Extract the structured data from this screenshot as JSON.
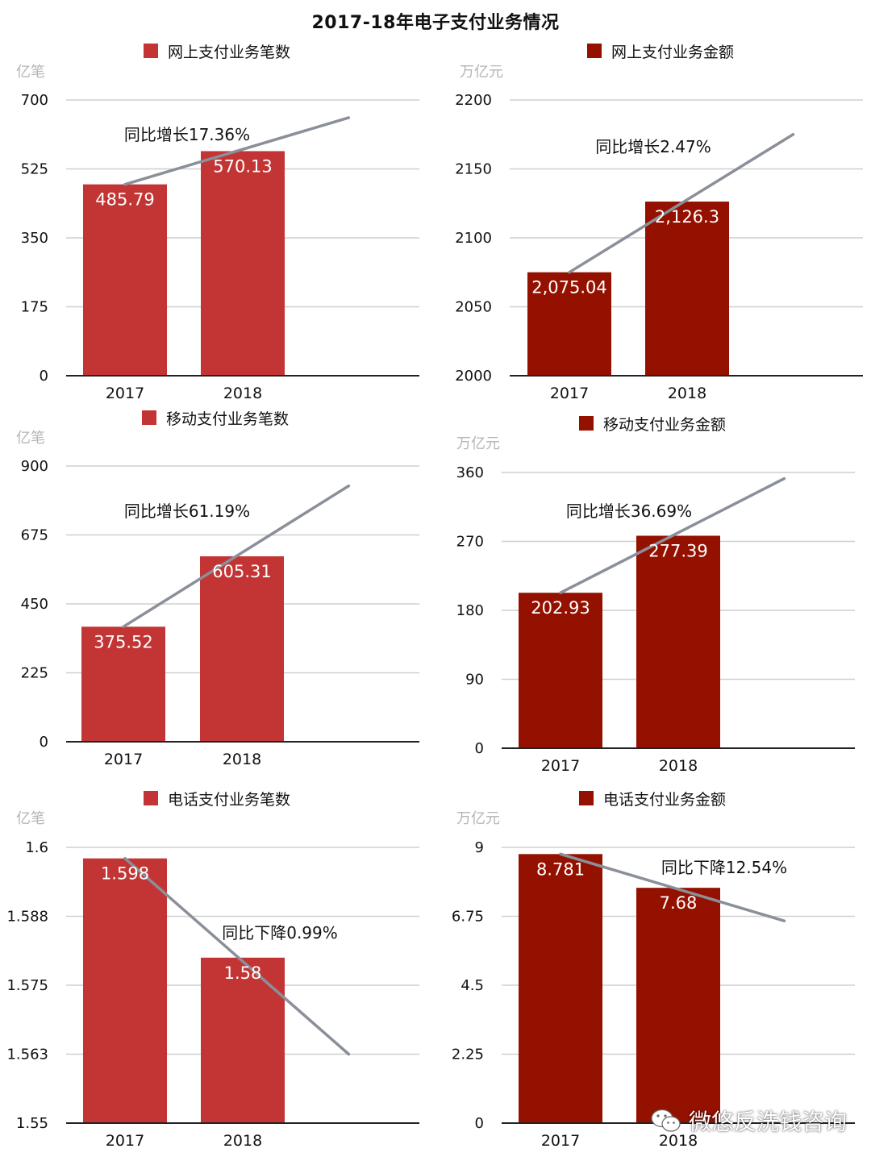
{
  "title": "2017-18年电子支付业务情况",
  "colors": {
    "bar_light": "#c33534",
    "bar_dark": "#941100",
    "trend": "#8a8f99",
    "grid": "#cfcfcf",
    "axis_line": "#222222"
  },
  "watermark": {
    "text": "微悠反洗钱咨询",
    "icon": "wechat-icon"
  },
  "chart_data": [
    {
      "type": "bar",
      "legend": "网上支付业务笔数",
      "unit": "亿笔",
      "color": "bar_light",
      "categories": [
        "2017",
        "2018"
      ],
      "values": [
        485.79,
        570.13
      ],
      "value_labels": [
        "485.79",
        "570.13"
      ],
      "ylim": [
        0,
        700
      ],
      "yticks": [
        "0",
        "175",
        "350",
        "525",
        "700"
      ],
      "annotation": "同比增长17.36%",
      "trend_end": [
        2.9,
        655
      ]
    },
    {
      "type": "bar",
      "legend": "网上支付业务金额",
      "unit": "万亿元",
      "color": "bar_dark",
      "categories": [
        "2017",
        "2018"
      ],
      "values": [
        2075.04,
        2126.3
      ],
      "value_labels": [
        "2,075.04",
        "2,126.3"
      ],
      "ylim": [
        2000,
        2200
      ],
      "yticks": [
        "2000",
        "2050",
        "2100",
        "2150",
        "2200"
      ],
      "annotation": "同比增长2.47%",
      "trend_end": [
        2.9,
        2175
      ]
    },
    {
      "type": "bar",
      "legend": "移动支付业务笔数",
      "unit": "亿笔",
      "color": "bar_light",
      "categories": [
        "2017",
        "2018"
      ],
      "values": [
        375.52,
        605.31
      ],
      "value_labels": [
        "375.52",
        "605.31"
      ],
      "ylim": [
        0,
        900
      ],
      "yticks": [
        "0",
        "225",
        "450",
        "675",
        "900"
      ],
      "annotation": "同比增长61.19%",
      "trend_end": [
        2.9,
        835
      ]
    },
    {
      "type": "bar",
      "legend": "移动支付业务金额",
      "unit": "万亿元",
      "color": "bar_dark",
      "categories": [
        "2017",
        "2018"
      ],
      "values": [
        202.93,
        277.39
      ],
      "value_labels": [
        "202.93",
        "277.39"
      ],
      "ylim": [
        0,
        360
      ],
      "yticks": [
        "0",
        "90",
        "180",
        "270",
        "360"
      ],
      "annotation": "同比增长36.69%",
      "trend_end": [
        2.9,
        352
      ]
    },
    {
      "type": "bar",
      "legend": "电话支付业务笔数",
      "unit": "亿笔",
      "color": "bar_light",
      "categories": [
        "2017",
        "2018"
      ],
      "values": [
        1.598,
        1.58
      ],
      "value_labels": [
        "1.598",
        "1.58"
      ],
      "ylim": [
        1.55,
        1.6
      ],
      "yticks": [
        "1.55",
        "1.563",
        "1.575",
        "1.588",
        "1.6"
      ],
      "annotation": "同比下降0.99%",
      "trend_end": [
        2.9,
        1.5625
      ]
    },
    {
      "type": "bar",
      "legend": "电话支付业务金额",
      "unit": "万亿元",
      "color": "bar_dark",
      "categories": [
        "2017",
        "2018"
      ],
      "values": [
        8.781,
        7.68
      ],
      "value_labels": [
        "8.781",
        "7.68"
      ],
      "ylim": [
        0,
        9
      ],
      "yticks": [
        "0",
        "2.25",
        "4.5",
        "6.75",
        "9"
      ],
      "annotation": "同比下降12.54%",
      "trend_end": [
        2.9,
        6.6
      ]
    }
  ]
}
